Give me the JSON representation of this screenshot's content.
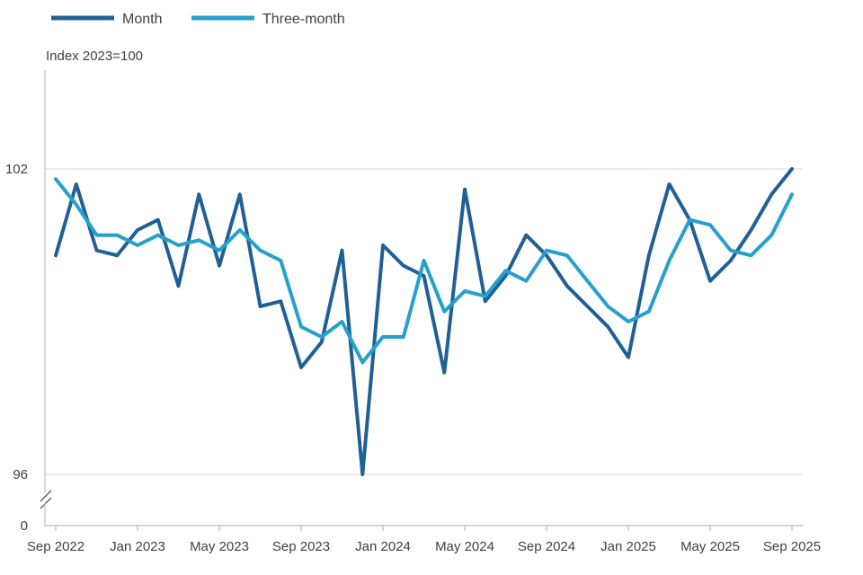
{
  "chart_data": {
    "type": "line",
    "ylabel": "Index 2023=100",
    "y_ticks": [
      {
        "value": 102,
        "label": "102"
      },
      {
        "value": 96,
        "label": "96"
      }
    ],
    "y_zero_label": "0",
    "ylim": [
      96,
      102
    ],
    "axis_break": true,
    "grid": "horizontal",
    "legend_position": "top-left",
    "x_tick_labels": [
      "Sep 2022",
      "Jan 2023",
      "May 2023",
      "Sep 2023",
      "Jan 2024",
      "May 2024",
      "Sep 2024",
      "Jan 2025",
      "May 2025",
      "Sep 2025"
    ],
    "x": [
      "Sep 2022",
      "Oct 2022",
      "Nov 2022",
      "Dec 2022",
      "Jan 2023",
      "Feb 2023",
      "Mar 2023",
      "Apr 2023",
      "May 2023",
      "Jun 2023",
      "Jul 2023",
      "Aug 2023",
      "Sep 2023",
      "Oct 2023",
      "Nov 2023",
      "Dec 2023",
      "Jan 2024",
      "Feb 2024",
      "Mar 2024",
      "Apr 2024",
      "May 2024",
      "Jun 2024",
      "Jul 2024",
      "Aug 2024",
      "Sep 2024",
      "Oct 2024",
      "Nov 2024",
      "Dec 2024",
      "Jan 2025",
      "Feb 2025",
      "Mar 2025",
      "Apr 2025",
      "May 2025",
      "Jun 2025",
      "Jul 2025",
      "Aug 2025",
      "Sep 2025"
    ],
    "series": [
      {
        "name": "Month",
        "color": "#206095",
        "values": [
          100.3,
          101.7,
          100.4,
          100.3,
          100.8,
          101.0,
          99.7,
          101.5,
          100.1,
          101.5,
          99.3,
          99.4,
          98.1,
          98.6,
          100.4,
          96.0,
          100.5,
          100.1,
          99.9,
          98.0,
          101.6,
          99.4,
          99.9,
          100.7,
          100.3,
          99.7,
          99.3,
          98.9,
          98.3,
          100.3,
          101.7,
          101.0,
          99.8,
          100.2,
          100.8,
          101.5,
          102.0
        ]
      },
      {
        "name": "Three-month",
        "color": "#27a0cc",
        "values": [
          101.8,
          101.3,
          100.7,
          100.7,
          100.5,
          100.7,
          100.5,
          100.6,
          100.4,
          100.8,
          100.4,
          100.2,
          98.9,
          98.7,
          99.0,
          98.2,
          98.7,
          98.7,
          100.2,
          99.2,
          99.6,
          99.5,
          100.0,
          99.8,
          100.4,
          100.3,
          99.8,
          99.3,
          99.0,
          99.2,
          100.2,
          101.0,
          100.9,
          100.4,
          100.3,
          100.7,
          101.5
        ]
      }
    ]
  }
}
